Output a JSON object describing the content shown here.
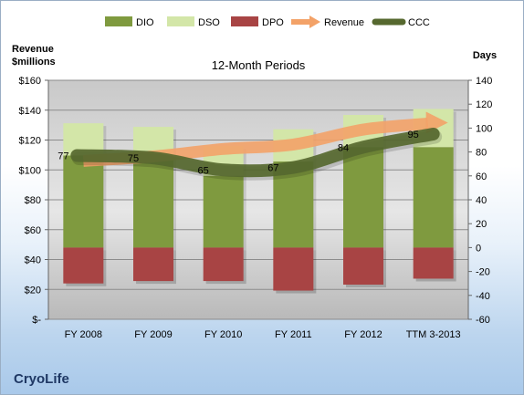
{
  "company": "CryoLife",
  "chart_data": {
    "type": "bar",
    "title": "12-Month Periods",
    "categories": [
      "FY 2008",
      "FY 2009",
      "FY 2010",
      "FY 2011",
      "FY 2012",
      "TTM 3-2013"
    ],
    "left_axis": {
      "label": [
        "Revenue",
        "$millions"
      ],
      "min": 0,
      "max": 160,
      "step": 20,
      "tick_labels": [
        "$-",
        "$20",
        "$40",
        "$60",
        "$80",
        "$100",
        "$120",
        "$140",
        "$160"
      ]
    },
    "right_axis": {
      "label": "Days",
      "min": -60,
      "max": 140,
      "step": 20,
      "tick_labels": [
        "-60",
        "-40",
        "-20",
        "0",
        "20",
        "40",
        "60",
        "80",
        "100",
        "120",
        "140"
      ]
    },
    "legend_position": "top",
    "series": [
      {
        "name": "DIO",
        "kind": "stacked-bar",
        "axis": "right",
        "color": "#7f9a3f",
        "values": [
          77,
          74,
          60,
          72,
          84,
          84
        ]
      },
      {
        "name": "DSO",
        "kind": "stacked-bar",
        "axis": "right",
        "color": "#d3e6a8",
        "values": [
          27,
          27,
          25,
          27,
          27,
          32
        ]
      },
      {
        "name": "DPO",
        "kind": "negative-bar",
        "axis": "right",
        "color": "#a84444",
        "values": [
          -30,
          -28,
          -28,
          -36,
          -31,
          -26
        ]
      },
      {
        "name": "Revenue",
        "kind": "line",
        "axis": "left",
        "color": "#f3a268",
        "values": [
          106,
          109,
          114,
          117,
          127,
          131
        ]
      },
      {
        "name": "CCC",
        "kind": "line",
        "axis": "right",
        "color": "#56682f",
        "values": [
          77,
          75,
          65,
          67,
          84,
          95
        ]
      }
    ],
    "ccc_labels": [
      "77",
      "75",
      "65",
      "67",
      "84",
      "95"
    ]
  }
}
